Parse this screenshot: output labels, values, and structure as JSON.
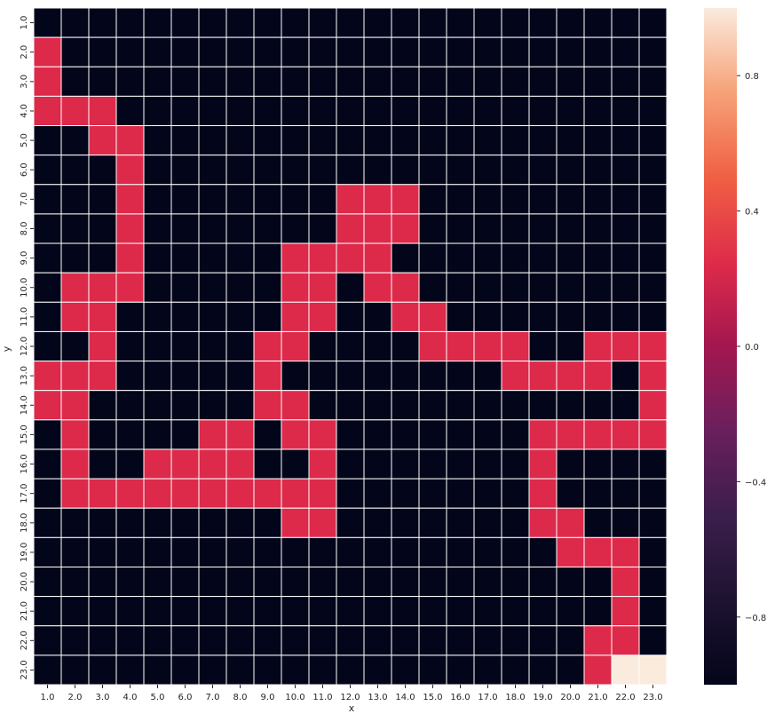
{
  "chart_data": {
    "type": "heatmap",
    "xlabel": "x",
    "ylabel": "y",
    "x_categories": [
      "1.0",
      "2.0",
      "3.0",
      "4.0",
      "5.0",
      "6.0",
      "7.0",
      "8.0",
      "9.0",
      "10.0",
      "11.0",
      "12.0",
      "13.0",
      "14.0",
      "15.0",
      "16.0",
      "17.0",
      "18.0",
      "19.0",
      "20.0",
      "21.0",
      "22.0",
      "23.0"
    ],
    "y_categories": [
      "1.0",
      "2.0",
      "3.0",
      "4.0",
      "5.0",
      "6.0",
      "7.0",
      "8.0",
      "9.0",
      "10.0",
      "11.0",
      "12.0",
      "13.0",
      "14.0",
      "15.0",
      "16.0",
      "17.0",
      "18.0",
      "19.0",
      "20.0",
      "21.0",
      "22.0",
      "23.0"
    ],
    "values": [
      [
        -1,
        -1,
        -1,
        -1,
        -1,
        -1,
        -1,
        -1,
        -1,
        -1,
        -1,
        -1,
        -1,
        -1,
        -1,
        -1,
        -1,
        -1,
        -1,
        -1,
        -1,
        -1,
        -1
      ],
      [
        0,
        -1,
        -1,
        -1,
        -1,
        -1,
        -1,
        -1,
        -1,
        -1,
        -1,
        -1,
        -1,
        -1,
        -1,
        -1,
        -1,
        -1,
        -1,
        -1,
        -1,
        -1,
        -1
      ],
      [
        0,
        -1,
        -1,
        -1,
        -1,
        -1,
        -1,
        -1,
        -1,
        -1,
        -1,
        -1,
        -1,
        -1,
        -1,
        -1,
        -1,
        -1,
        -1,
        -1,
        -1,
        -1,
        -1
      ],
      [
        0,
        0,
        0,
        -1,
        -1,
        -1,
        -1,
        -1,
        -1,
        -1,
        -1,
        -1,
        -1,
        -1,
        -1,
        -1,
        -1,
        -1,
        -1,
        -1,
        -1,
        -1,
        -1
      ],
      [
        -1,
        -1,
        0,
        0,
        -1,
        -1,
        -1,
        -1,
        -1,
        -1,
        -1,
        -1,
        -1,
        -1,
        -1,
        -1,
        -1,
        -1,
        -1,
        -1,
        -1,
        -1,
        -1
      ],
      [
        -1,
        -1,
        -1,
        0,
        -1,
        -1,
        -1,
        -1,
        -1,
        -1,
        -1,
        -1,
        -1,
        -1,
        -1,
        -1,
        -1,
        -1,
        -1,
        -1,
        -1,
        -1,
        -1
      ],
      [
        -1,
        -1,
        -1,
        0,
        -1,
        -1,
        -1,
        -1,
        -1,
        -1,
        -1,
        0,
        0,
        0,
        -1,
        -1,
        -1,
        -1,
        -1,
        -1,
        -1,
        -1,
        -1
      ],
      [
        -1,
        -1,
        -1,
        0,
        -1,
        -1,
        -1,
        -1,
        -1,
        -1,
        -1,
        0,
        0,
        0,
        -1,
        -1,
        -1,
        -1,
        -1,
        -1,
        -1,
        -1,
        -1
      ],
      [
        -1,
        -1,
        -1,
        0,
        -1,
        -1,
        -1,
        -1,
        -1,
        0,
        0,
        0,
        0,
        -1,
        -1,
        -1,
        -1,
        -1,
        -1,
        -1,
        -1,
        -1,
        -1
      ],
      [
        -1,
        0,
        0,
        0,
        -1,
        -1,
        -1,
        -1,
        -1,
        0,
        0,
        -1,
        0,
        0,
        -1,
        -1,
        -1,
        -1,
        -1,
        -1,
        -1,
        -1,
        -1
      ],
      [
        -1,
        0,
        0,
        -1,
        -1,
        -1,
        -1,
        -1,
        -1,
        0,
        0,
        -1,
        -1,
        0,
        0,
        -1,
        -1,
        -1,
        -1,
        -1,
        -1,
        -1,
        -1
      ],
      [
        -1,
        -1,
        0,
        -1,
        -1,
        -1,
        -1,
        -1,
        0,
        0,
        -1,
        -1,
        -1,
        -1,
        0,
        0,
        0,
        0,
        -1,
        -1,
        0,
        0,
        0
      ],
      [
        0,
        0,
        0,
        -1,
        -1,
        -1,
        -1,
        -1,
        0,
        -1,
        -1,
        -1,
        -1,
        -1,
        -1,
        -1,
        -1,
        0,
        0,
        0,
        0,
        -1,
        0
      ],
      [
        0,
        0,
        -1,
        -1,
        -1,
        -1,
        -1,
        -1,
        0,
        0,
        -1,
        -1,
        -1,
        -1,
        -1,
        -1,
        -1,
        -1,
        -1,
        -1,
        -1,
        -1,
        0
      ],
      [
        -1,
        0,
        -1,
        -1,
        -1,
        -1,
        0,
        0,
        -1,
        0,
        0,
        -1,
        -1,
        -1,
        -1,
        -1,
        -1,
        -1,
        0,
        0,
        0,
        0,
        0
      ],
      [
        -1,
        0,
        -1,
        -1,
        0,
        0,
        0,
        0,
        -1,
        -1,
        0,
        -1,
        -1,
        -1,
        -1,
        -1,
        -1,
        -1,
        0,
        -1,
        -1,
        -1,
        -1
      ],
      [
        -1,
        0,
        0,
        0,
        0,
        0,
        0,
        0,
        0,
        0,
        0,
        -1,
        -1,
        -1,
        -1,
        -1,
        -1,
        -1,
        0,
        -1,
        -1,
        -1,
        -1
      ],
      [
        -1,
        -1,
        -1,
        -1,
        -1,
        -1,
        -1,
        -1,
        -1,
        0,
        0,
        -1,
        -1,
        -1,
        -1,
        -1,
        -1,
        -1,
        0,
        0,
        -1,
        -1,
        -1
      ],
      [
        -1,
        -1,
        -1,
        -1,
        -1,
        -1,
        -1,
        -1,
        -1,
        -1,
        -1,
        -1,
        -1,
        -1,
        -1,
        -1,
        -1,
        -1,
        -1,
        0,
        0,
        0,
        -1
      ],
      [
        -1,
        -1,
        -1,
        -1,
        -1,
        -1,
        -1,
        -1,
        -1,
        -1,
        -1,
        -1,
        -1,
        -1,
        -1,
        -1,
        -1,
        -1,
        -1,
        -1,
        -1,
        0,
        -1
      ],
      [
        -1,
        -1,
        -1,
        -1,
        -1,
        -1,
        -1,
        -1,
        -1,
        -1,
        -1,
        -1,
        -1,
        -1,
        -1,
        -1,
        -1,
        -1,
        -1,
        -1,
        -1,
        0,
        -1
      ],
      [
        -1,
        -1,
        -1,
        -1,
        -1,
        -1,
        -1,
        -1,
        -1,
        -1,
        -1,
        -1,
        -1,
        -1,
        -1,
        -1,
        -1,
        -1,
        -1,
        -1,
        0,
        0,
        -1
      ],
      [
        -1,
        -1,
        -1,
        -1,
        -1,
        -1,
        -1,
        -1,
        -1,
        -1,
        -1,
        -1,
        -1,
        -1,
        -1,
        -1,
        -1,
        -1,
        -1,
        -1,
        0,
        1,
        1
      ]
    ],
    "vmin": -1,
    "vmax": 1,
    "colormap": "rocket",
    "colors": {
      "low": "#03051a",
      "mid": "#dd2a4a",
      "high": "#faebdd",
      "cell_border": "#ffffff"
    },
    "colorbar": {
      "ticks": [
        0.8,
        0.4,
        0.0,
        -0.4,
        -0.8
      ],
      "tick_labels": [
        "0.8",
        "0.4",
        "0.0",
        "−0.4",
        "−0.8"
      ],
      "position": "right"
    },
    "grid": false,
    "legend": "none"
  }
}
